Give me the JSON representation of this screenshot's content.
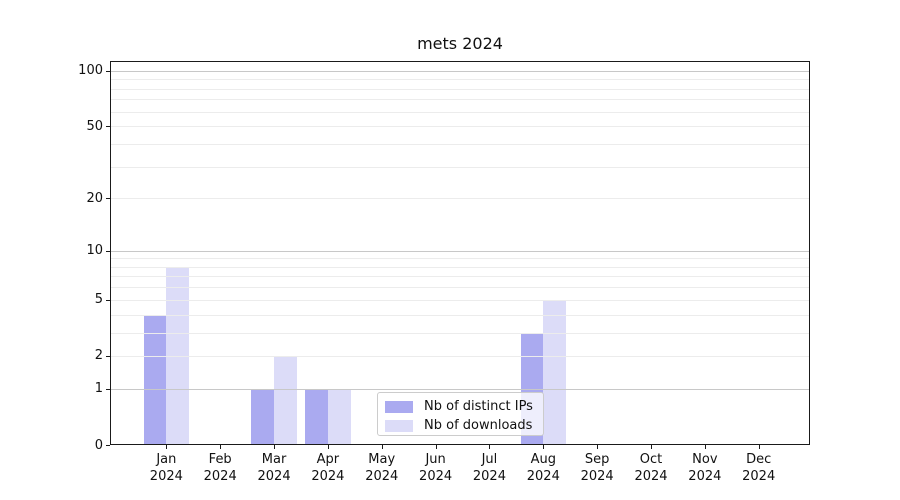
{
  "chart_data": {
    "type": "bar",
    "title": "mets 2024",
    "categories": [
      "Jan",
      "Feb",
      "Mar",
      "Apr",
      "May",
      "Jun",
      "Jul",
      "Aug",
      "Sep",
      "Oct",
      "Nov",
      "Dec"
    ],
    "year_label": "2024",
    "series": [
      {
        "name": "Nb of distinct IPs",
        "color": "#aaaaf0",
        "values": [
          4,
          0,
          1,
          1,
          0,
          0,
          0,
          3,
          0,
          0,
          0,
          0
        ]
      },
      {
        "name": "Nb of downloads",
        "color": "#dcdcf8",
        "values": [
          8,
          0,
          2,
          1,
          0,
          0,
          0,
          5,
          0,
          0,
          0,
          0
        ]
      }
    ],
    "y_scale": "log1p",
    "ylim": [
      0,
      113
    ],
    "y_ticks_labeled": [
      100,
      50,
      20,
      10,
      5,
      2,
      1,
      0
    ],
    "y_grid_major": [
      1,
      10,
      100
    ],
    "y_grid_minor": [
      2,
      3,
      4,
      5,
      6,
      7,
      8,
      9,
      20,
      30,
      40,
      50,
      60,
      70,
      80,
      90
    ],
    "grid": true,
    "legend_position": "lower center",
    "axis_color": "#1a1a1a"
  }
}
